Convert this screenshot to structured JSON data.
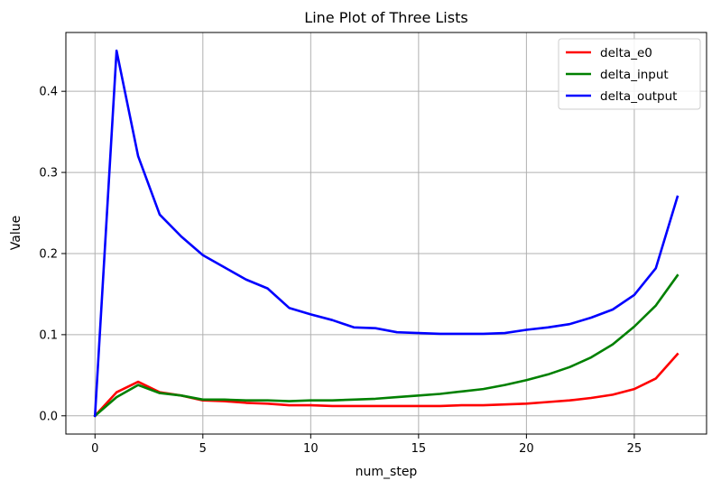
{
  "chart_data": {
    "type": "line",
    "title": "Line Plot of Three Lists",
    "xlabel": "num_step",
    "ylabel": "Value",
    "xlim": [
      -1.35,
      28.35
    ],
    "ylim": [
      -0.0225,
      0.4725
    ],
    "xticks": [
      0,
      5,
      10,
      15,
      20,
      25
    ],
    "yticks": [
      0.0,
      0.1,
      0.2,
      0.3,
      0.4
    ],
    "ytick_labels": [
      "0.0",
      "0.1",
      "0.2",
      "0.3",
      "0.4"
    ],
    "grid": true,
    "legend_position": "top-right",
    "x": [
      0,
      1,
      2,
      3,
      4,
      5,
      6,
      7,
      8,
      9,
      10,
      11,
      12,
      13,
      14,
      15,
      16,
      17,
      18,
      19,
      20,
      21,
      22,
      23,
      24,
      25,
      26,
      27
    ],
    "series": [
      {
        "name": "delta_e0",
        "color": "#ff0000",
        "values": [
          0.0,
          0.029,
          0.042,
          0.029,
          0.025,
          0.019,
          0.018,
          0.016,
          0.015,
          0.013,
          0.013,
          0.012,
          0.012,
          0.012,
          0.012,
          0.012,
          0.012,
          0.013,
          0.013,
          0.014,
          0.015,
          0.017,
          0.019,
          0.022,
          0.026,
          0.033,
          0.046,
          0.076
        ]
      },
      {
        "name": "delta_input",
        "color": "#008000",
        "values": [
          0.0,
          0.023,
          0.038,
          0.028,
          0.025,
          0.02,
          0.02,
          0.019,
          0.019,
          0.018,
          0.019,
          0.019,
          0.02,
          0.021,
          0.023,
          0.025,
          0.027,
          0.03,
          0.033,
          0.038,
          0.044,
          0.051,
          0.06,
          0.072,
          0.088,
          0.11,
          0.136,
          0.173
        ]
      },
      {
        "name": "delta_output",
        "color": "#0000ff",
        "values": [
          0.0,
          0.45,
          0.32,
          0.248,
          0.221,
          0.198,
          0.183,
          0.168,
          0.157,
          0.133,
          0.125,
          0.118,
          0.109,
          0.108,
          0.103,
          0.102,
          0.101,
          0.101,
          0.101,
          0.102,
          0.106,
          0.109,
          0.113,
          0.121,
          0.131,
          0.149,
          0.182,
          0.27
        ]
      }
    ]
  }
}
